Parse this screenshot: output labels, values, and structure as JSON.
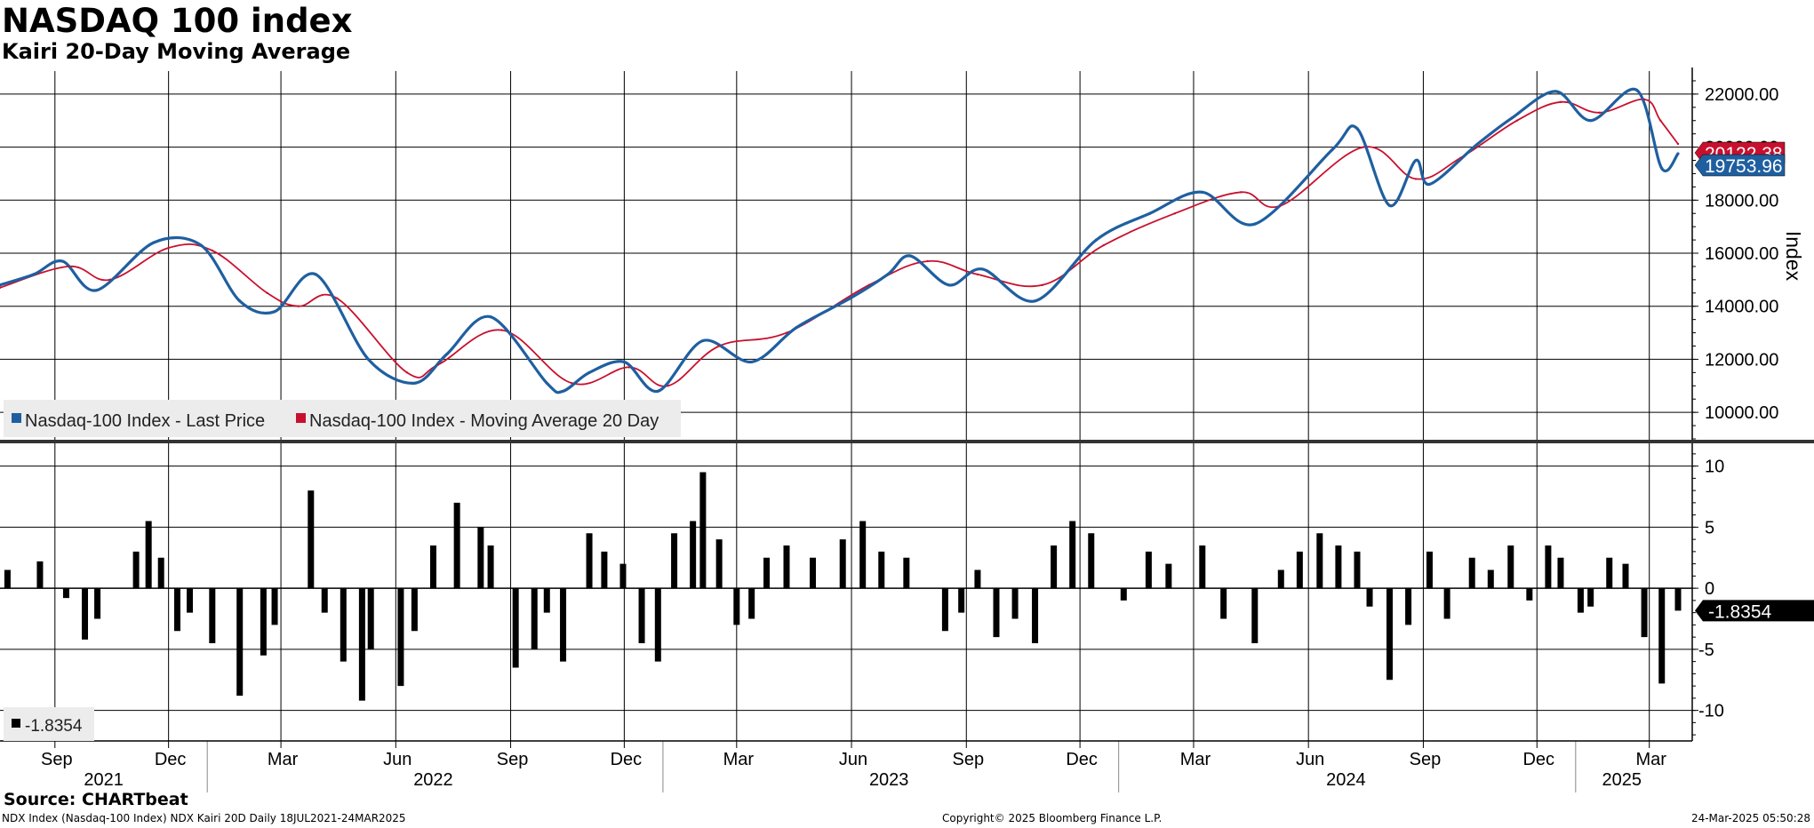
{
  "header": {
    "title": "NASDAQ 100 index",
    "subtitle": "Kairi 20-Day Moving Average"
  },
  "footer": {
    "source": "Source: CHARTbeat",
    "left_note": "NDX Index (Nasdaq-100 Index) NDX Kairi 20D  Daily 18JUL2021-24MAR2025",
    "copyright": "Copyright© 2025 Bloomberg Finance L.P.",
    "timestamp": "24-Mar-2025 05:50:28"
  },
  "colors": {
    "price": "#1f5fa0",
    "moving_average": "#c8102e",
    "kairi": "#000000",
    "grid": "#000000",
    "legend_bg": "#ececec"
  },
  "chart_data": [
    {
      "type": "line",
      "panel": "top",
      "ylabel": "Index",
      "ylim": [
        9000,
        22800
      ],
      "yticks": [
        "22000.00",
        "20000.00",
        "18000.00",
        "16000.00",
        "14000.00",
        "12000.00",
        "10000.00"
      ],
      "grid": true,
      "legend_position": "bottom-left",
      "x_start": "2021-07-19",
      "x_end": "2025-03-24",
      "series": [
        {
          "name": "Nasdaq-100 Index - Last Price",
          "last_label": "19753.96",
          "x": [
            "2021-07-19",
            "2021-08-15",
            "2021-09-07",
            "2021-10-04",
            "2021-11-19",
            "2021-12-27",
            "2022-01-27",
            "2022-02-24",
            "2022-03-29",
            "2022-05-10",
            "2022-06-16",
            "2022-07-12",
            "2022-08-16",
            "2022-09-30",
            "2022-10-13",
            "2022-11-03",
            "2022-12-01",
            "2022-12-28",
            "2023-02-02",
            "2023-03-13",
            "2023-04-18",
            "2023-05-31",
            "2023-06-30",
            "2023-07-18",
            "2023-08-18",
            "2023-09-14",
            "2023-10-26",
            "2023-12-14",
            "2024-01-26",
            "2024-03-08",
            "2024-04-19",
            "2024-06-20",
            "2024-07-10",
            "2024-08-05",
            "2024-08-26",
            "2024-09-06",
            "2024-10-14",
            "2024-11-11",
            "2024-12-16",
            "2025-01-13",
            "2025-02-19",
            "2025-03-11",
            "2025-03-24"
          ],
          "values": [
            14800,
            15200,
            15700,
            14600,
            16400,
            16300,
            14200,
            13800,
            15200,
            12000,
            11100,
            12200,
            13600,
            11100,
            10800,
            11500,
            11900,
            10800,
            12700,
            11900,
            13200,
            14300,
            15200,
            15900,
            14800,
            15400,
            14200,
            16500,
            17500,
            18300,
            17100,
            19900,
            20700,
            17800,
            19500,
            18600,
            20100,
            21100,
            22100,
            21000,
            22150,
            19200,
            19754
          ]
        },
        {
          "name": "Nasdaq-100 Index - Moving Average 20 Day",
          "last_label": "20122.38",
          "x": [
            "2021-07-19",
            "2021-09-12",
            "2021-10-15",
            "2021-12-01",
            "2022-01-05",
            "2022-02-18",
            "2022-03-15",
            "2022-04-15",
            "2022-06-10",
            "2022-07-05",
            "2022-08-25",
            "2022-10-20",
            "2022-12-05",
            "2023-01-05",
            "2023-02-15",
            "2023-04-10",
            "2023-06-15",
            "2023-08-01",
            "2023-09-10",
            "2023-11-01",
            "2023-12-20",
            "2024-02-15",
            "2024-04-08",
            "2024-05-10",
            "2024-07-15",
            "2024-08-26",
            "2024-10-01",
            "2024-11-15",
            "2024-12-20",
            "2025-01-20",
            "2025-02-25",
            "2025-03-10",
            "2025-03-24"
          ],
          "values": [
            14700,
            15500,
            15000,
            16200,
            16100,
            14500,
            14000,
            14300,
            11500,
            11800,
            13100,
            11100,
            11700,
            11000,
            12500,
            13000,
            14800,
            15700,
            15200,
            14800,
            16300,
            17500,
            18300,
            17800,
            20000,
            18800,
            19600,
            21000,
            21700,
            21300,
            21800,
            21000,
            20122
          ]
        }
      ]
    },
    {
      "type": "bar",
      "panel": "bottom",
      "series_name": "NDX Kairi 20D",
      "last_label": "-1.8354",
      "legend_value": "-1.8354",
      "ylim": [
        -12.5,
        11.5
      ],
      "yticks": [
        "10",
        "5",
        "0",
        "-5",
        "-10"
      ],
      "grid": true,
      "legend_position": "bottom-left",
      "x_start": "2021-07-19",
      "x_end": "2025-03-24",
      "x": [
        "2021-07-25",
        "2021-08-20",
        "2021-09-10",
        "2021-09-25",
        "2021-10-05",
        "2021-11-05",
        "2021-11-15",
        "2021-11-25",
        "2021-12-08",
        "2021-12-18",
        "2022-01-05",
        "2022-01-27",
        "2022-02-15",
        "2022-02-24",
        "2022-03-25",
        "2022-04-05",
        "2022-04-20",
        "2022-05-05",
        "2022-05-12",
        "2022-06-05",
        "2022-06-16",
        "2022-07-01",
        "2022-07-20",
        "2022-08-08",
        "2022-08-16",
        "2022-09-05",
        "2022-09-20",
        "2022-09-30",
        "2022-10-13",
        "2022-11-03",
        "2022-11-15",
        "2022-11-30",
        "2022-12-15",
        "2022-12-28",
        "2023-01-10",
        "2023-01-25",
        "2023-02-02",
        "2023-02-15",
        "2023-03-01",
        "2023-03-13",
        "2023-03-25",
        "2023-04-10",
        "2023-05-01",
        "2023-05-25",
        "2023-06-10",
        "2023-06-25",
        "2023-07-15",
        "2023-08-15",
        "2023-08-28",
        "2023-09-10",
        "2023-09-25",
        "2023-10-10",
        "2023-10-26",
        "2023-11-10",
        "2023-11-25",
        "2023-12-10",
        "2024-01-05",
        "2024-01-25",
        "2024-02-10",
        "2024-03-08",
        "2024-03-25",
        "2024-04-19",
        "2024-05-10",
        "2024-05-25",
        "2024-06-10",
        "2024-06-25",
        "2024-07-10",
        "2024-07-20",
        "2024-08-05",
        "2024-08-20",
        "2024-09-06",
        "2024-09-20",
        "2024-10-10",
        "2024-10-25",
        "2024-11-10",
        "2024-11-25",
        "2024-12-10",
        "2024-12-20",
        "2025-01-05",
        "2025-01-13",
        "2025-01-28",
        "2025-02-10",
        "2025-02-25",
        "2025-03-11",
        "2025-03-24"
      ],
      "values": [
        1.5,
        2.2,
        -0.8,
        -4.2,
        -2.5,
        3.0,
        5.5,
        2.5,
        -3.5,
        -2.0,
        -4.5,
        -8.8,
        -5.5,
        -3.0,
        8.0,
        -2.0,
        -6.0,
        -9.2,
        -5.0,
        -8.0,
        -3.5,
        3.5,
        7.0,
        5.0,
        3.5,
        -6.5,
        -5.0,
        -2.0,
        -6.0,
        4.5,
        3.0,
        2.0,
        -4.5,
        -6.0,
        4.5,
        5.5,
        9.5,
        4.0,
        -3.0,
        -2.5,
        2.5,
        3.5,
        2.5,
        4.0,
        5.5,
        3.0,
        2.5,
        -3.5,
        -2.0,
        1.5,
        -4.0,
        -2.5,
        -4.5,
        3.5,
        5.5,
        4.5,
        -1.0,
        3.0,
        2.0,
        3.5,
        -2.5,
        -4.5,
        1.5,
        3.0,
        4.5,
        3.5,
        3.0,
        -1.5,
        -7.5,
        -3.0,
        3.0,
        -2.5,
        2.5,
        1.5,
        3.5,
        -1.0,
        3.5,
        2.5,
        -2.0,
        -1.5,
        2.5,
        2.0,
        -4.0,
        -7.8,
        -1.8354
      ]
    }
  ],
  "x_axis": {
    "months": [
      "Sep",
      "Dec",
      "Mar",
      "Jun",
      "Sep",
      "Dec",
      "Mar",
      "Jun",
      "Sep",
      "Dec",
      "Mar",
      "Jun",
      "Sep",
      "Dec",
      "Mar"
    ],
    "years": [
      "2021",
      "2022",
      "2023",
      "2024",
      "2025"
    ]
  }
}
